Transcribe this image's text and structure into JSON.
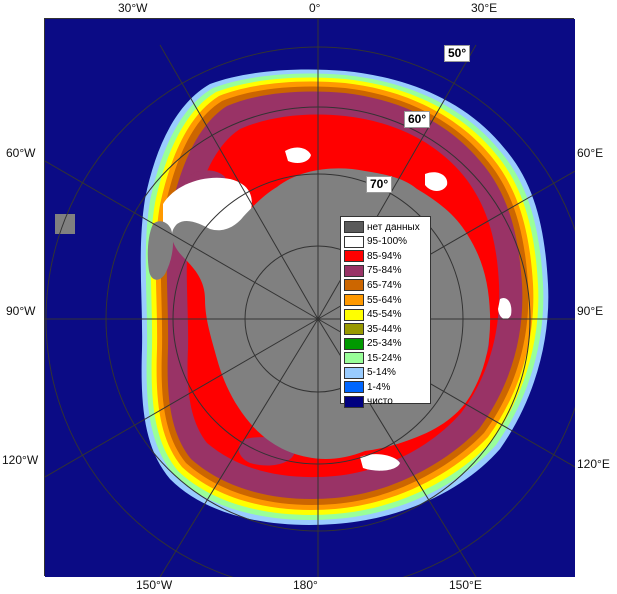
{
  "map": {
    "lon_labels_top": [
      "30°W",
      "0°",
      "30°E"
    ],
    "lon_labels_bottom": [
      "150°W",
      "180°",
      "150°E"
    ],
    "lon_labels_left": [
      "60°W",
      "90°W",
      "120°W"
    ],
    "lon_labels_right": [
      "60°E",
      "90°E",
      "120°E"
    ],
    "lat_labels": [
      "50°",
      "60°",
      "70°"
    ]
  },
  "legend": [
    {
      "label": "нет данных",
      "color": "#5a5a5a"
    },
    {
      "label": "95-100%",
      "color": "#ffffff"
    },
    {
      "label": "85-94%",
      "color": "#ff0000"
    },
    {
      "label": "75-84%",
      "color": "#993366"
    },
    {
      "label": "65-74%",
      "color": "#cc6600"
    },
    {
      "label": "55-64%",
      "color": "#ff9900"
    },
    {
      "label": "45-54%",
      "color": "#ffff00"
    },
    {
      "label": "35-44%",
      "color": "#999900"
    },
    {
      "label": "25-34%",
      "color": "#009900"
    },
    {
      "label": "15-24%",
      "color": "#99ff99"
    },
    {
      "label": "5-14%",
      "color": "#99ccff"
    },
    {
      "label": "1-4%",
      "color": "#0066ff"
    },
    {
      "label": "чисто",
      "color": "#000080"
    }
  ],
  "colors": {
    "ocean": "#0b0b85",
    "land": "#808080",
    "grid": "#aaaaaa"
  }
}
